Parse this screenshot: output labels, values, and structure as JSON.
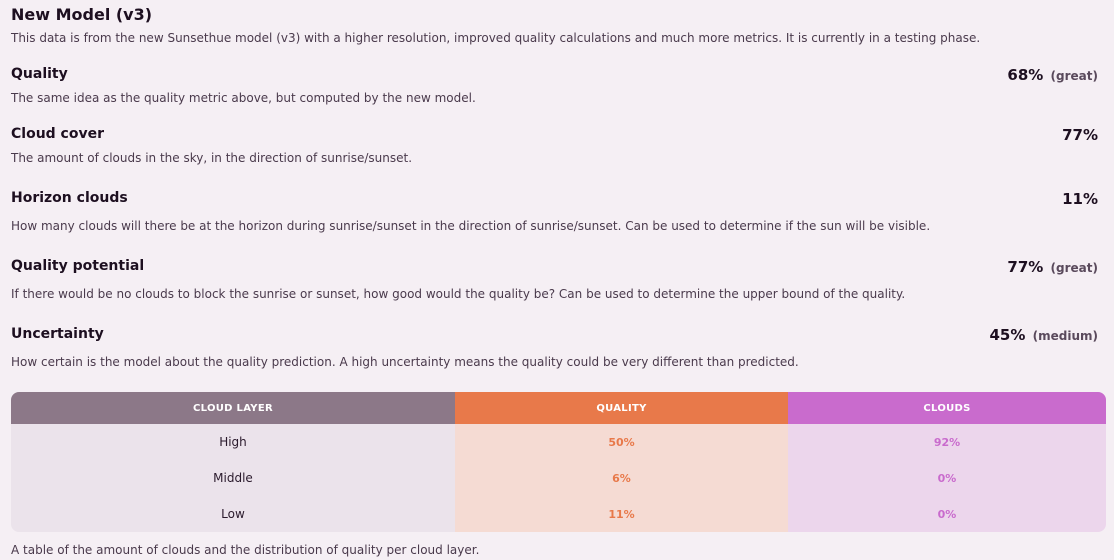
{
  "section": {
    "title": "New Model (v3)",
    "description": "This data is from the new Sunsethue model (v3) with a higher resolution, improved quality calculations and much more metrics. It is currently in a testing phase."
  },
  "metrics": [
    {
      "title": "Quality",
      "value": "68%",
      "qualifier": "(great)",
      "description": "The same idea as the quality metric above, but computed by the new model."
    },
    {
      "title": "Cloud cover",
      "value": "77%",
      "qualifier": "",
      "description": "The amount of clouds in the sky, in the direction of sunrise/sunset."
    },
    {
      "title": "Horizon clouds",
      "value": "11%",
      "qualifier": "",
      "description": "How many clouds will there be at the horizon during sunrise/sunset in the direction of sunrise/sunset. Can be used to determine if the sun will be visible."
    },
    {
      "title": "Quality potential",
      "value": "77%",
      "qualifier": "(great)",
      "description": "If there would be no clouds to block the sunrise or sunset, how good would the quality be? Can be used to determine the upper bound of the quality."
    },
    {
      "title": "Uncertainty",
      "value": "45%",
      "qualifier": "(medium)",
      "description": "How certain is the model about the quality prediction. A high uncertainty means the quality could be very different than predicted."
    }
  ],
  "table": {
    "headers": [
      "CLOUD LAYER",
      "QUALITY",
      "CLOUDS"
    ],
    "rows": [
      {
        "layer": "High",
        "quality": "50%",
        "clouds": "92%"
      },
      {
        "layer": "Middle",
        "quality": "6%",
        "clouds": "0%"
      },
      {
        "layer": "Low",
        "quality": "11%",
        "clouds": "0%"
      }
    ],
    "caption": "A table of the amount of clouds and the distribution of quality per cloud layer."
  },
  "colors": {
    "background": "#f5eff4",
    "layer_header": "#8c7888",
    "quality_accent": "#e8794a",
    "clouds_accent": "#c96bcd"
  }
}
